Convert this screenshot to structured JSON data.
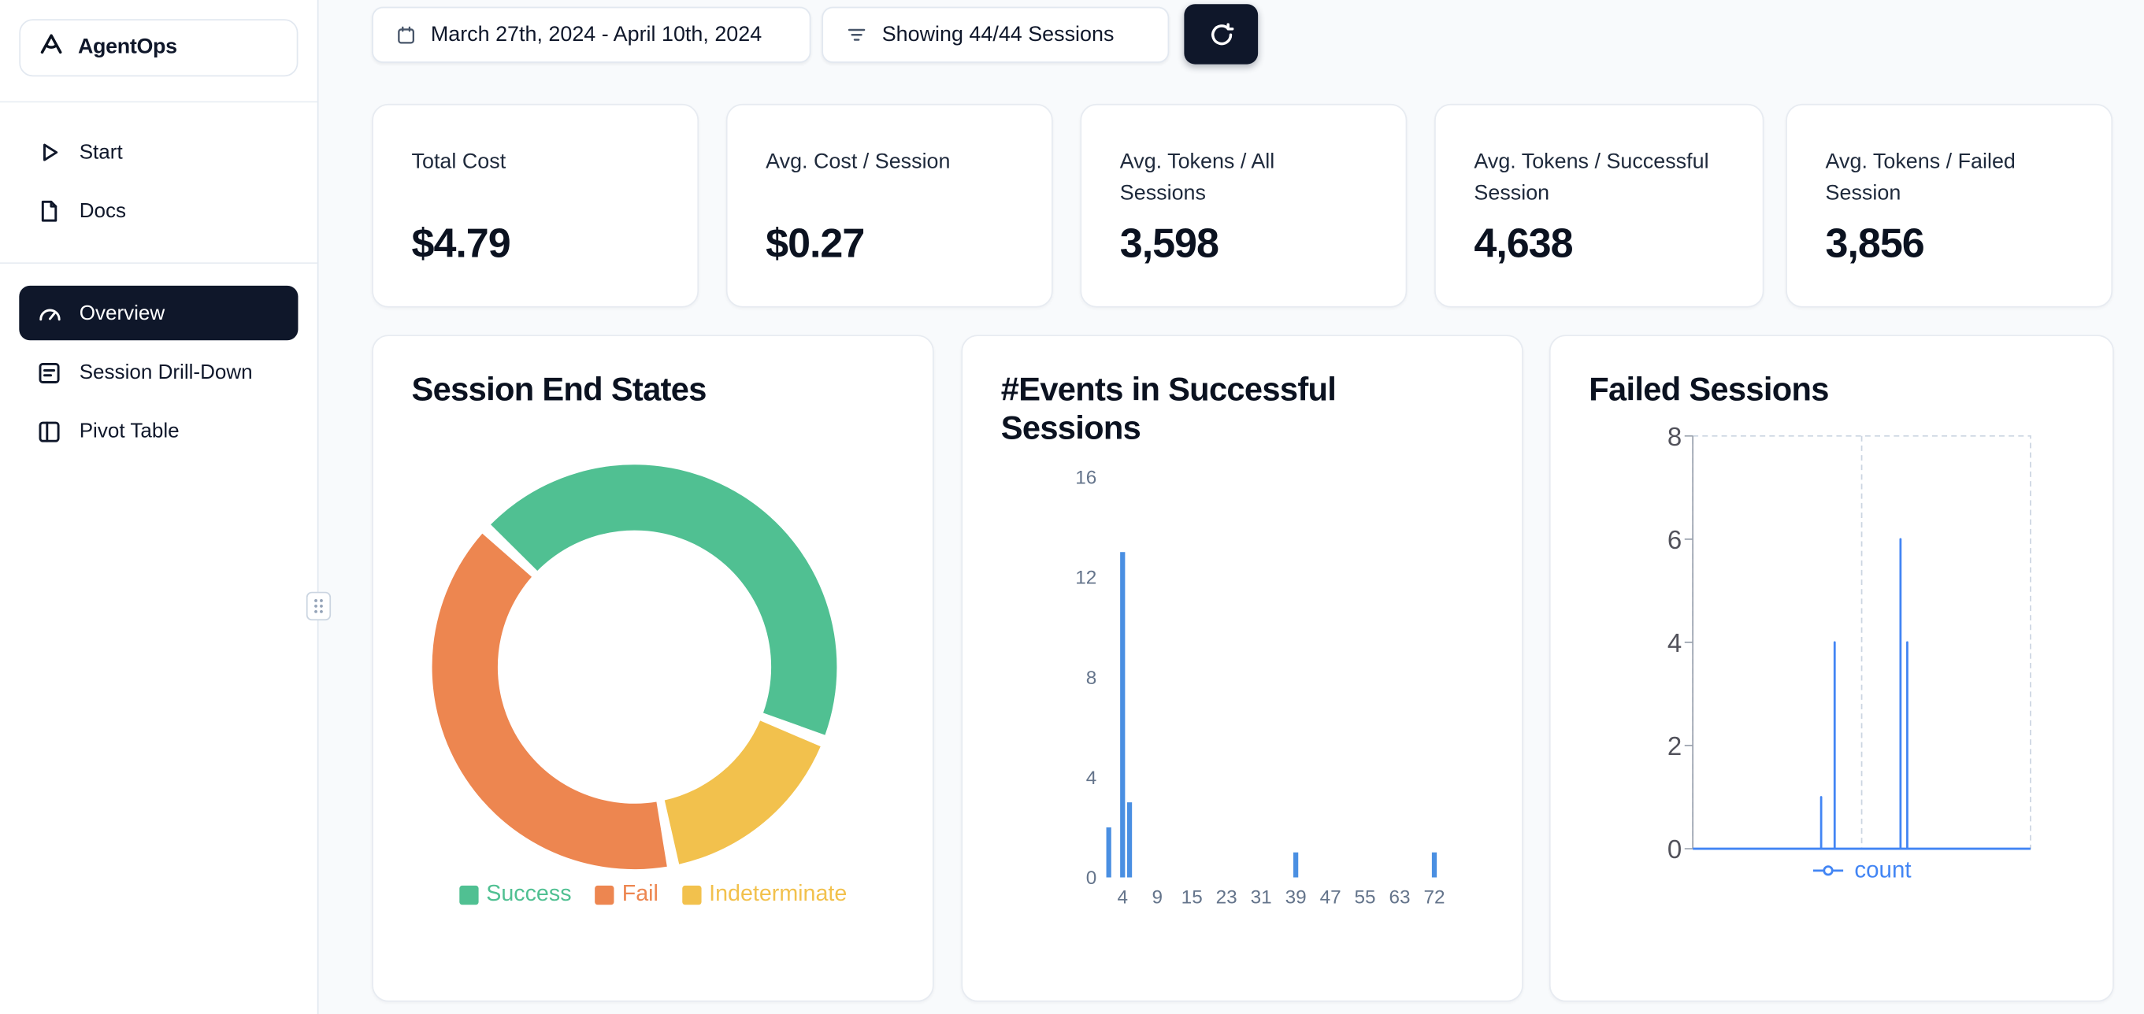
{
  "app": {
    "name": "AgentOps"
  },
  "sidebar": {
    "primary": [
      {
        "label": "Start",
        "icon": "play-icon"
      },
      {
        "label": "Docs",
        "icon": "document-icon"
      }
    ],
    "views": [
      {
        "label": "Overview",
        "icon": "gauge-icon",
        "active": true
      },
      {
        "label": "Session Drill-Down",
        "icon": "session-drilldown-icon",
        "active": false
      },
      {
        "label": "Pivot Table",
        "icon": "pivot-table-icon",
        "active": false
      }
    ]
  },
  "toolbar": {
    "date_range": "March 27th, 2024 - April 10th, 2024",
    "sessions_filter": "Showing 44/44 Sessions"
  },
  "stats": [
    {
      "label": "Total Cost",
      "value": "$4.79"
    },
    {
      "label": "Avg. Cost / Session",
      "value": "$0.27"
    },
    {
      "label": "Avg. Tokens / All Sessions",
      "value": "3,598"
    },
    {
      "label": "Avg. Tokens / Successful Session",
      "value": "4,638"
    },
    {
      "label": "Avg. Tokens / Failed Session",
      "value": "3,856"
    }
  ],
  "colors": {
    "accent_dark": "#0f172a",
    "success": "#50c092",
    "fail": "#ed8650",
    "indeterminate": "#f2c14d",
    "bar_blue": "#4a8fe2",
    "line_blue": "#4285f4",
    "background": "#f8fafc"
  },
  "chart_data": [
    {
      "type": "pie",
      "donut": true,
      "title": "Session End States",
      "labels": [
        "Success",
        "Fail",
        "Indeterminate"
      ],
      "values_percent": [
        44,
        40,
        16
      ],
      "colors": [
        "#50c092",
        "#ed8650",
        "#f2c14d"
      ],
      "start_angle_deg": -47,
      "draw_order": [
        0,
        2,
        1
      ],
      "legend_position": "bottom",
      "legend_items": [
        {
          "label": "Success",
          "color": "#50c092"
        },
        {
          "label": "Fail",
          "color": "#ed8650"
        },
        {
          "label": "Indeterminate",
          "color": "#f2c14d"
        }
      ]
    },
    {
      "type": "bar",
      "title": "#Events in Successful Sessions",
      "x_tick_labels": [
        4,
        9,
        15,
        23,
        31,
        39,
        47,
        55,
        63,
        72
      ],
      "y_ticks": [
        0,
        4,
        8,
        12,
        16
      ],
      "ylim": [
        0,
        16
      ],
      "bar_color": "#4a8fe2",
      "bars": [
        {
          "x": 2,
          "count": 2
        },
        {
          "x": 4,
          "count": 13
        },
        {
          "x": 5,
          "count": 3
        },
        {
          "x": 39,
          "count": 1
        },
        {
          "x": 72,
          "count": 1
        }
      ]
    },
    {
      "type": "line",
      "title": "Failed Sessions",
      "y_ticks": [
        0,
        2,
        4,
        6,
        8
      ],
      "ylim": [
        0,
        8
      ],
      "grid": "dashed",
      "series": [
        {
          "name": "count",
          "color": "#4285f4"
        }
      ],
      "baseline_value": 0,
      "spikes": [
        {
          "x_percent": 38,
          "value": 1
        },
        {
          "x_percent": 42,
          "value": 4
        },
        {
          "x_percent": 61.5,
          "value": 6
        },
        {
          "x_percent": 63.5,
          "value": 4
        }
      ],
      "legend_items": [
        {
          "label": "count",
          "color": "#4285f4"
        }
      ]
    }
  ]
}
